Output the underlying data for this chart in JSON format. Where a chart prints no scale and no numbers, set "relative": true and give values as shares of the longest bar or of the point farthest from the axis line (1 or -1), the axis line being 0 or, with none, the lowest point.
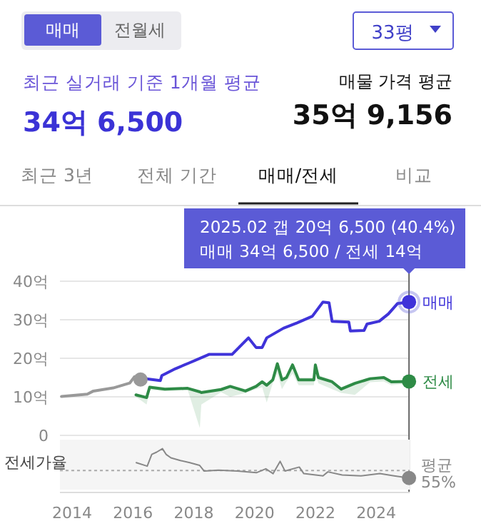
{
  "chart_data": [
    {
      "type": "other",
      "annotations": [
        "매매",
        "전월세",
        "33평",
        "최근 실거래 기준 1개월 평균",
        "34억 6,500",
        "매물 가격 평균",
        "35억 9,156",
        "최근 3년",
        "전체 기간",
        "매매/전세",
        "비교"
      ]
    },
    {
      "type": "line",
      "xlim": [
        2013.6,
        2025.1
      ],
      "ylim": [
        0,
        40
      ],
      "yticks": [
        0,
        {
          "value": 10,
          "label": "10억"
        },
        {
          "value": 20,
          "label": "20억"
        },
        {
          "value": 30,
          "label": "30억"
        },
        {
          "value": 40,
          "label": "40억"
        }
      ],
      "grid": "y",
      "tick_labels": "y",
      "series": [
        {
          "color": "#999999",
          "x": [
            2013.65,
            2014.5,
            2014.7,
            2015.35,
            2015.9,
            2016.05,
            2016.25
          ],
          "values": [
            10.1,
            10.7,
            11.5,
            12.3,
            13.6,
            15.2,
            14.5
          ]
        },
        {
          "name": "매매",
          "color": "#3f33d9",
          "x": [
            2016.3,
            2016.9,
            2016.95,
            2017.4,
            2017.85,
            2018.5,
            2019.26,
            2019.8,
            2020.05,
            2020.25,
            2020.4,
            2020.95,
            2021.4,
            2021.9,
            2022.25,
            2022.45,
            2022.55,
            2023.1,
            2023.15,
            2023.6,
            2023.7,
            2024.1,
            2024.4,
            2024.7,
            2025.08
          ],
          "values": [
            14.8,
            14.2,
            15.5,
            17.3,
            18.8,
            21.0,
            21.0,
            25.3,
            22.8,
            22.8,
            25.3,
            27.8,
            29.2,
            30.9,
            34.6,
            34.4,
            29.6,
            29.4,
            27.1,
            27.2,
            28.9,
            29.6,
            31.5,
            34.2,
            34.6
          ]
        },
        {
          "name": "전세",
          "color": "#2e8b46",
          "x": [
            2016.1,
            2016.45,
            2016.55,
            2017.05,
            2017.8,
            2018.2,
            2018.25,
            2018.9,
            2019.2,
            2019.7,
            2020.05,
            2020.25,
            2020.4,
            2020.6,
            2020.75,
            2020.9,
            2021.05,
            2021.25,
            2021.45,
            2021.95,
            2022.0,
            2022.1,
            2022.55,
            2022.85,
            2023.3,
            2023.8,
            2024.25,
            2024.5,
            2025.08
          ],
          "values": [
            10.5,
            9.8,
            12.5,
            12.0,
            12.2,
            11.3,
            11.1,
            11.9,
            12.7,
            11.5,
            12.7,
            13.9,
            13.0,
            14.4,
            18.6,
            14.4,
            15.0,
            18.3,
            14.4,
            14.4,
            18.3,
            15.0,
            13.9,
            12.0,
            13.5,
            14.7,
            15.0,
            13.9,
            14.0
          ],
          "lower": [
            10.0,
            8.0,
            11.8,
            11.5,
            11.8,
            1.9,
            8.0,
            11.2,
            10.0,
            11.0,
            12.0,
            12.5,
            8.5,
            13.5,
            16.0,
            12.0,
            14.0,
            16.0,
            13.0,
            13.0,
            16.0,
            13.5,
            12.0,
            11.0,
            10.5,
            13.8,
            14.0,
            13.0,
            13.5
          ],
          "upper": [
            10.8,
            10.3,
            12.9,
            12.4,
            12.6,
            11.6,
            11.5,
            12.3,
            13.1,
            12.0,
            13.2,
            14.3,
            13.5,
            14.9,
            18.9,
            15.0,
            15.5,
            18.6,
            15.0,
            15.0,
            18.6,
            15.6,
            14.4,
            12.5,
            14.0,
            15.1,
            15.4,
            14.4,
            14.4
          ]
        }
      ],
      "annotations": [
        {
          "text": "2025.02  갭 20억 6,500 (40.4%)\n매매 34억 6,500 / 전세 14억",
          "x": 2025.08,
          "y": 34.6
        }
      ]
    },
    {
      "type": "line",
      "ylabel": "전세가율",
      "xlim": [
        2013.6,
        2025.1
      ],
      "relative": true,
      "xticks": [
        2014,
        2016,
        2018,
        2020,
        2022,
        2024
      ],
      "tick_labels": "x",
      "series": [
        {
          "color": "#888888",
          "x": [
            2016.11,
            2016.47,
            2016.62,
            2016.78,
            2016.97,
            2017.09,
            2017.25,
            2017.56,
            2017.87,
            2018.19,
            2018.34,
            2018.81,
            2019.44,
            2020.06,
            2020.37,
            2020.61,
            2020.84,
            2021.0,
            2021.47,
            2021.62,
            2022.25,
            2022.41,
            2022.88,
            2023.5,
            2024.12,
            2024.59,
            2025.08
          ],
          "values": [
            0.68,
            0.6,
            0.87,
            0.92,
            1,
            0.87,
            0.79,
            0.73,
            0.68,
            0.62,
            0.49,
            0.51,
            0.49,
            0.45,
            0.54,
            0.43,
            0.71,
            0.49,
            0.58,
            0.43,
            0.38,
            0.47,
            0.4,
            0.38,
            0.43,
            0.38,
            0.33
          ]
        }
      ],
      "ref_lines": [
        {
          "axis": "y",
          "value": 0.5,
          "label": "평균 55%",
          "color": "#aaaaaa",
          "line_style": "dotted"
        }
      ]
    }
  ]
}
